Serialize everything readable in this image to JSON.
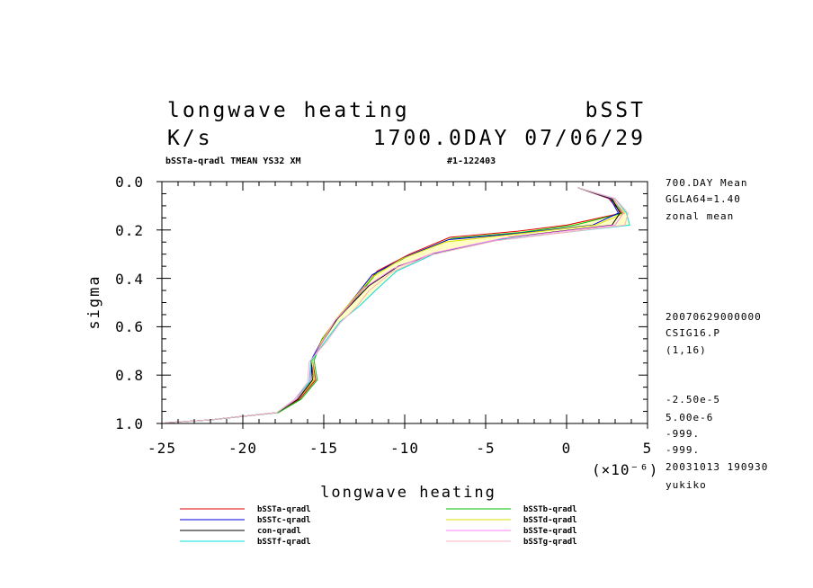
{
  "chart_data": {
    "type": "line",
    "title": "longwave heating",
    "title_right": "bSST",
    "units": "K/s",
    "time_label": "1700.0DAY 07/06/29",
    "subtitle_left": "bSSTa-qradl TMEAN YS32 XM",
    "subtitle_right": "#1-122403",
    "xlabel": "longwave heating",
    "ylabel": "sigma",
    "x_multiplier": "(×10⁻⁶)",
    "xlim": [
      -25,
      5
    ],
    "ylim": [
      0.0,
      1.0
    ],
    "y_inverted": true,
    "x_ticks": [
      "-25",
      "-20",
      "-15",
      "-10",
      "-5",
      "0",
      "5"
    ],
    "y_ticks": [
      "0.0",
      "0.2",
      "0.4",
      "0.6",
      "0.8",
      "1.0"
    ],
    "shading": {
      "between": [
        "bSSTa-qradl",
        "bSSTf-qradl"
      ],
      "color": "#fffcc4"
    },
    "side_info_top": [
      "700.DAY Mean",
      "GGLA64=1.40",
      "zonal mean"
    ],
    "side_info_mid": [
      "20070629000000",
      "CSIG16.P",
      "(1,16)"
    ],
    "side_info_bottom": [
      "-2.50e-5",
      "5.00e-6",
      "-999.",
      "-999.",
      "20031013 190930",
      "yukiko"
    ],
    "series": [
      {
        "name": "bSSTa-qradl",
        "color": "#e00000",
        "x": [
          0.7,
          2.6,
          3.4,
          0.0,
          -3.0,
          -7.2,
          -9.7,
          -11.7,
          -12.8,
          -14.0,
          -15.1,
          -15.7,
          -15.5,
          -16.5,
          -17.8,
          -22.0,
          -24.8
        ],
        "y": [
          0.025,
          0.07,
          0.13,
          0.18,
          0.205,
          0.23,
          0.3,
          0.37,
          0.46,
          0.55,
          0.65,
          0.74,
          0.82,
          0.9,
          0.955,
          0.985,
          0.997
        ]
      },
      {
        "name": "bSSTb-qradl",
        "color": "#00c000",
        "x": [
          0.7,
          2.7,
          3.5,
          0.5,
          -2.8,
          -7.1,
          -9.7,
          -11.7,
          -12.8,
          -14.0,
          -15.1,
          -15.6,
          -15.4,
          -16.4,
          -17.8,
          -22.0,
          -24.8
        ],
        "y": [
          0.025,
          0.07,
          0.13,
          0.18,
          0.21,
          0.235,
          0.305,
          0.375,
          0.465,
          0.555,
          0.65,
          0.74,
          0.82,
          0.9,
          0.955,
          0.985,
          0.997
        ]
      },
      {
        "name": "bSSTc-qradl",
        "color": "#0000e0",
        "x": [
          0.7,
          2.7,
          3.2,
          1.6,
          -3.2,
          -7.3,
          -9.9,
          -12.0,
          -13.0,
          -14.1,
          -15.1,
          -15.8,
          -15.6,
          -16.6,
          -17.9,
          -22.0,
          -24.8
        ],
        "y": [
          0.025,
          0.07,
          0.13,
          0.18,
          0.215,
          0.24,
          0.31,
          0.385,
          0.47,
          0.56,
          0.655,
          0.74,
          0.82,
          0.9,
          0.955,
          0.985,
          0.997
        ]
      },
      {
        "name": "bSSTd-qradl",
        "color": "#e0e000",
        "x": [
          0.7,
          2.8,
          3.6,
          1.8,
          -3.5,
          -7.5,
          -10.2,
          -12.0,
          -13.1,
          -14.2,
          -15.1,
          -15.7,
          -15.6,
          -16.6,
          -17.9,
          -22.0,
          -24.8
        ],
        "y": [
          0.025,
          0.07,
          0.13,
          0.18,
          0.22,
          0.25,
          0.32,
          0.395,
          0.48,
          0.565,
          0.655,
          0.74,
          0.82,
          0.9,
          0.955,
          0.985,
          0.997
        ]
      },
      {
        "name": "con-qradl",
        "color": "#000000",
        "x": [
          0.7,
          2.8,
          3.3,
          2.8,
          -3.5,
          -7.8,
          -10.4,
          -12.2,
          -13.2,
          -14.2,
          -15.0,
          -15.8,
          -15.7,
          -16.6,
          -17.9,
          -22.0,
          -24.8
        ],
        "y": [
          0.025,
          0.07,
          0.13,
          0.18,
          0.23,
          0.29,
          0.35,
          0.43,
          0.5,
          0.57,
          0.655,
          0.745,
          0.82,
          0.9,
          0.955,
          0.985,
          0.997
        ]
      },
      {
        "name": "bSSTe-qradl",
        "color": "#ff80ff",
        "x": [
          0.7,
          2.9,
          3.5,
          3.0,
          -4.0,
          -8.2,
          -10.7,
          -12.5,
          -13.4,
          -14.3,
          -15.0,
          -15.8,
          -15.8,
          -16.7,
          -17.9,
          -22.0,
          -24.8
        ],
        "y": [
          0.025,
          0.07,
          0.13,
          0.18,
          0.235,
          0.295,
          0.36,
          0.44,
          0.51,
          0.575,
          0.655,
          0.745,
          0.82,
          0.9,
          0.955,
          0.985,
          0.997
        ]
      },
      {
        "name": "bSSTf-qradl",
        "color": "#00e0e0",
        "x": [
          0.7,
          3.0,
          3.7,
          3.9,
          -4.1,
          -8.2,
          -10.5,
          -11.8,
          -12.8,
          -14.0,
          -14.9,
          -15.8,
          -15.9,
          -16.8,
          -17.9,
          -22.0,
          -24.8
        ],
        "y": [
          0.025,
          0.07,
          0.13,
          0.18,
          0.24,
          0.3,
          0.37,
          0.45,
          0.515,
          0.58,
          0.66,
          0.745,
          0.83,
          0.9,
          0.955,
          0.985,
          0.997
        ]
      },
      {
        "name": "bSSTg-qradl",
        "color": "#ffb0c0",
        "x": [
          0.7,
          3.0,
          3.8,
          3.6,
          -4.4,
          -8.5,
          -10.8,
          -12.2,
          -13.0,
          -14.0,
          -14.8,
          -15.9,
          -16.0,
          -16.8,
          -17.9,
          -22.0,
          -24.8
        ],
        "y": [
          0.025,
          0.07,
          0.13,
          0.18,
          0.245,
          0.305,
          0.375,
          0.45,
          0.52,
          0.585,
          0.66,
          0.745,
          0.83,
          0.9,
          0.955,
          0.985,
          0.997
        ]
      }
    ],
    "legend": {
      "left": [
        "bSSTa-qradl",
        "bSSTc-qradl",
        "con-qradl",
        "bSSTf-qradl"
      ],
      "right": [
        "bSSTb-qradl",
        "bSSTd-qradl",
        "bSSTe-qradl",
        "bSSTg-qradl"
      ]
    }
  }
}
